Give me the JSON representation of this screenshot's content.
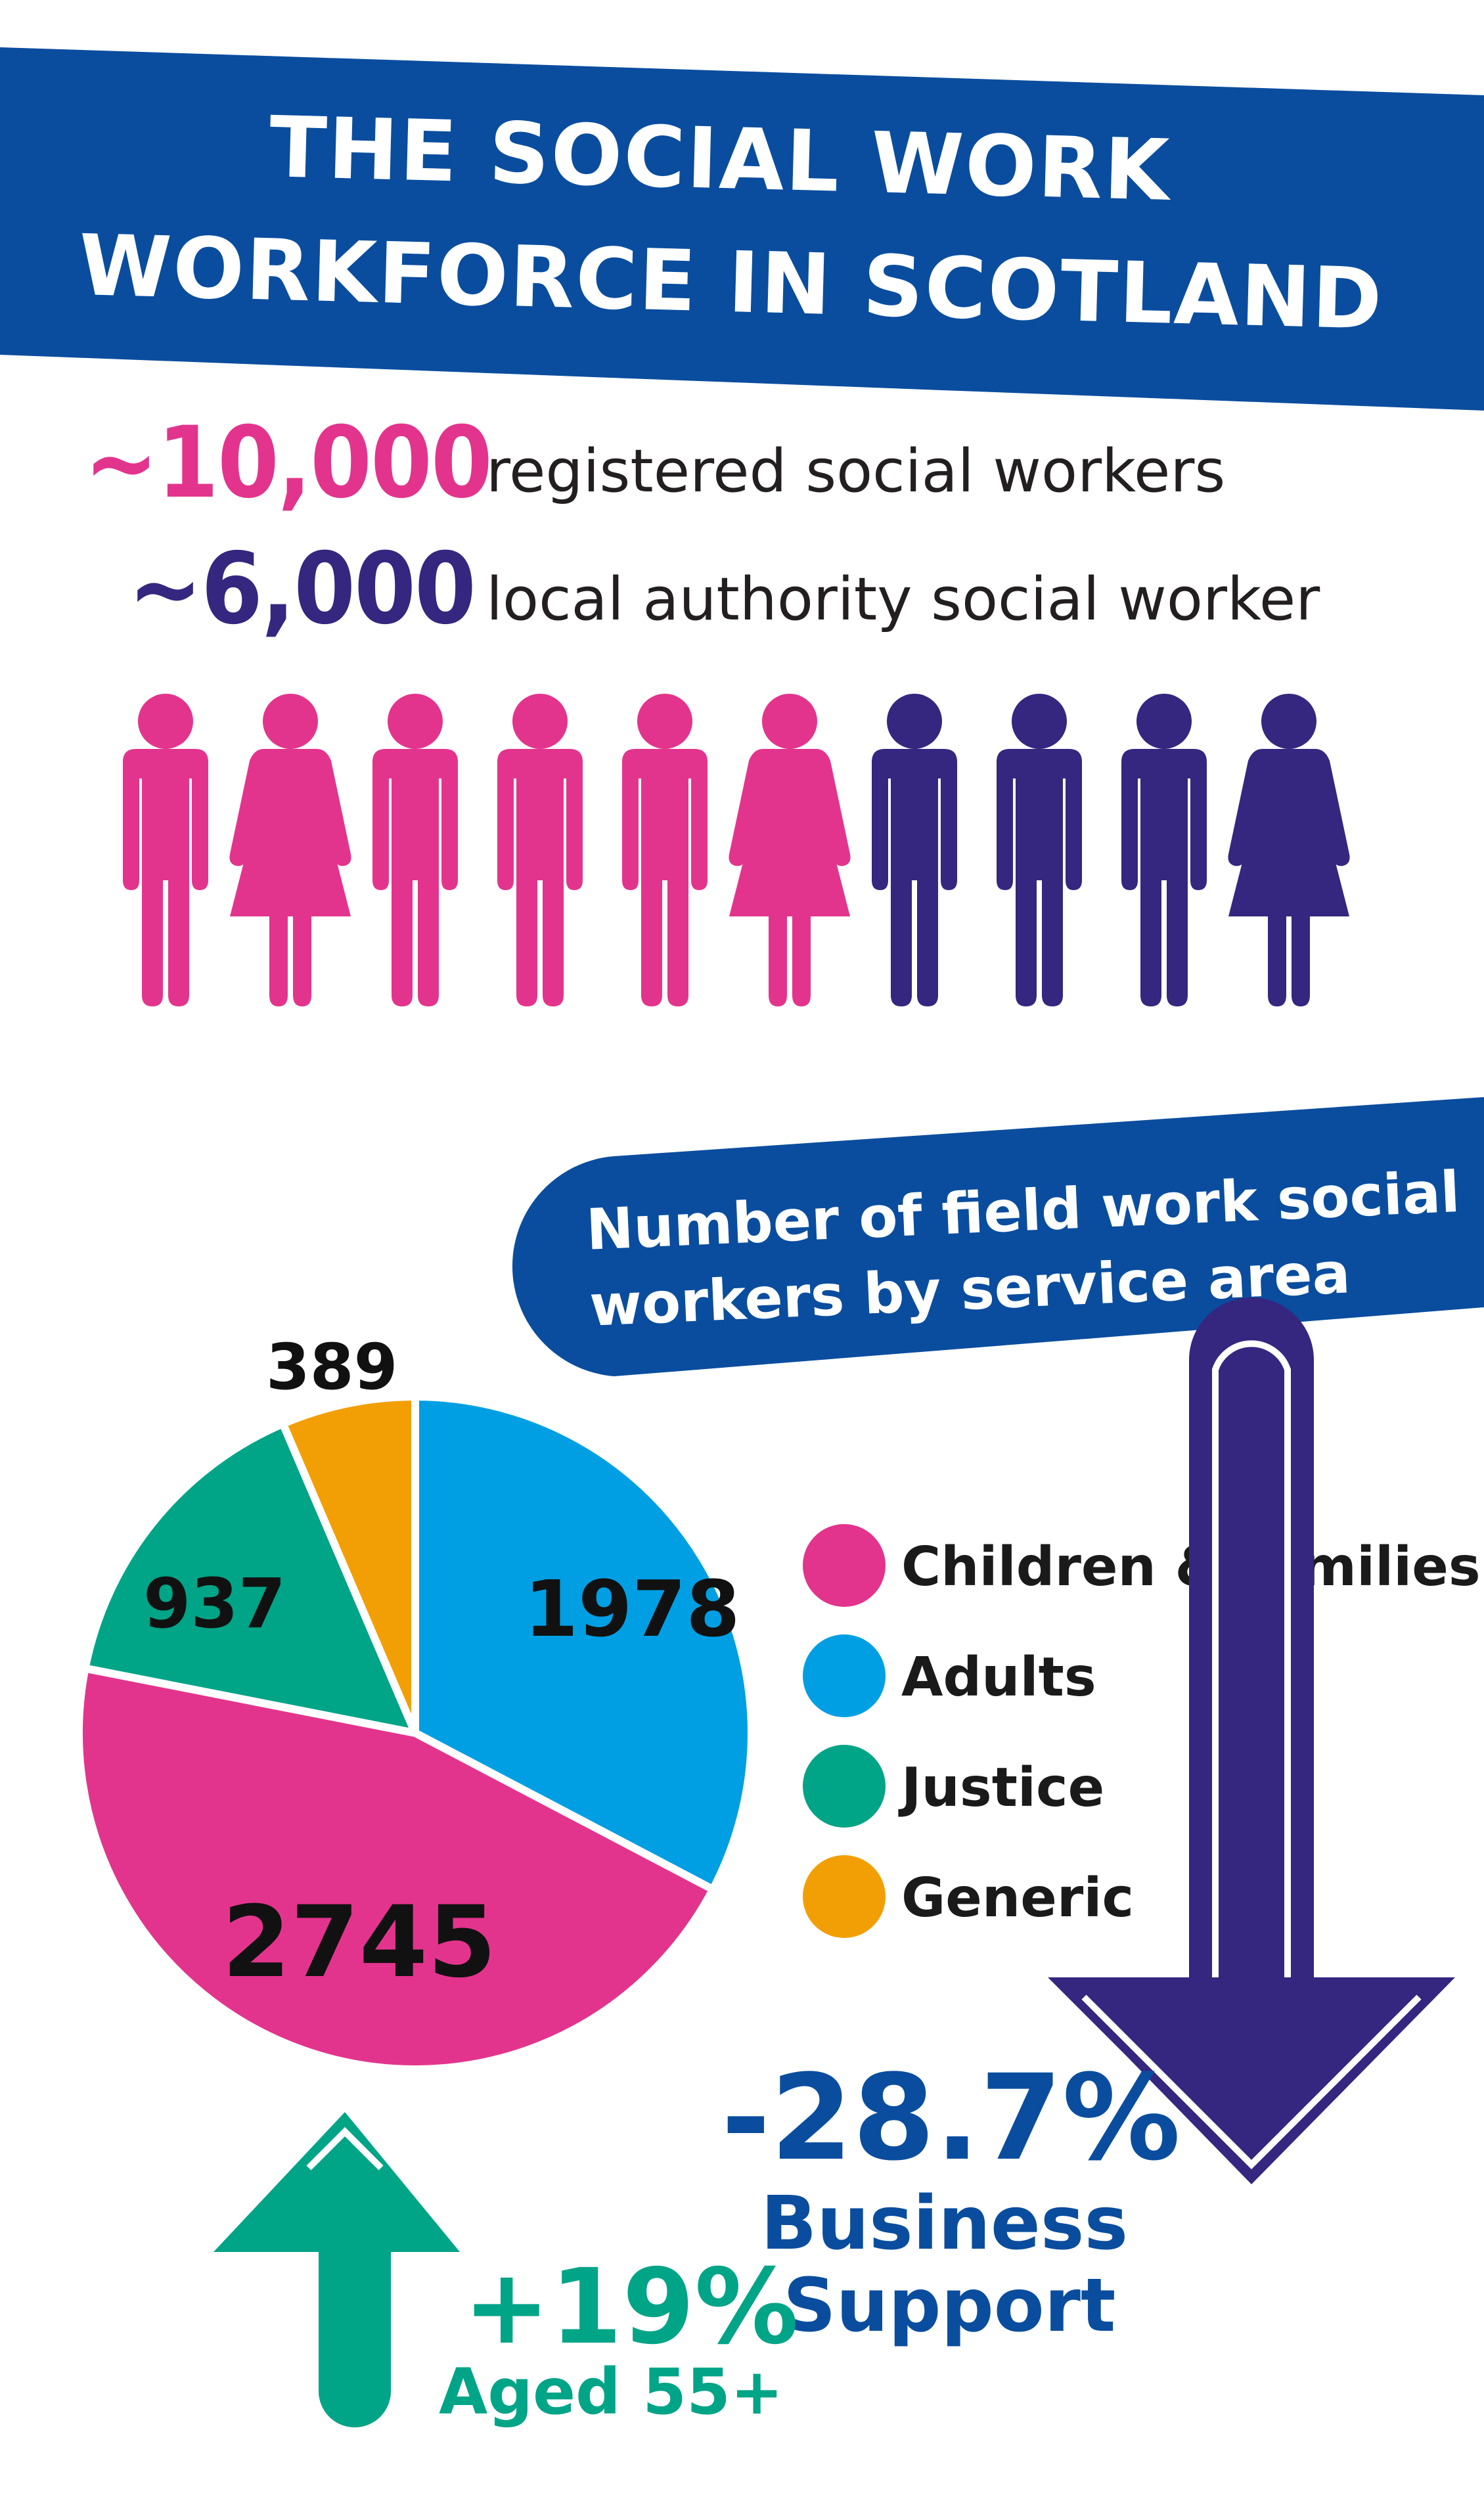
{
  "header": {
    "title_line1": "THE SOCIAL WORK",
    "title_line2": "WORKFORCE IN SCOTLAND"
  },
  "stats": {
    "registered_value": "~10,000",
    "registered_label": "registered social workers",
    "local_value": "~6,000",
    "local_label": "local authority social worker"
  },
  "people": {
    "figures": [
      "man",
      "woman",
      "man",
      "man",
      "man",
      "woman",
      "man",
      "man",
      "man",
      "woman"
    ],
    "colors": [
      "#e3348d",
      "#e3348d",
      "#e3348d",
      "#e3348d",
      "#e3348d",
      "#e3348d",
      "#35267f",
      "#35267f",
      "#35267f",
      "#35267f"
    ]
  },
  "callout": {
    "line1": "Number of field work social",
    "line2": "workers by service area"
  },
  "chart_data": {
    "type": "pie",
    "title": "Number of field work social workers by service area",
    "categories": [
      "Children & families",
      "Adults",
      "Justice",
      "Generic"
    ],
    "values": [
      2745,
      1978,
      937,
      389
    ],
    "colors": [
      "#e3348d",
      "#009fe3",
      "#00a487",
      "#f29f05"
    ],
    "legend_position": "right"
  },
  "trends": {
    "down_value": "-28.7%",
    "down_label1": "Business",
    "down_label2": "Support",
    "up_value": "+19%",
    "up_label": "Aged 55+"
  },
  "colors": {
    "banner_blue": "#0a4d9e",
    "pink": "#e3348d",
    "purple": "#35267f",
    "teal": "#00a487",
    "dark_blue": "#0a4d9e"
  }
}
